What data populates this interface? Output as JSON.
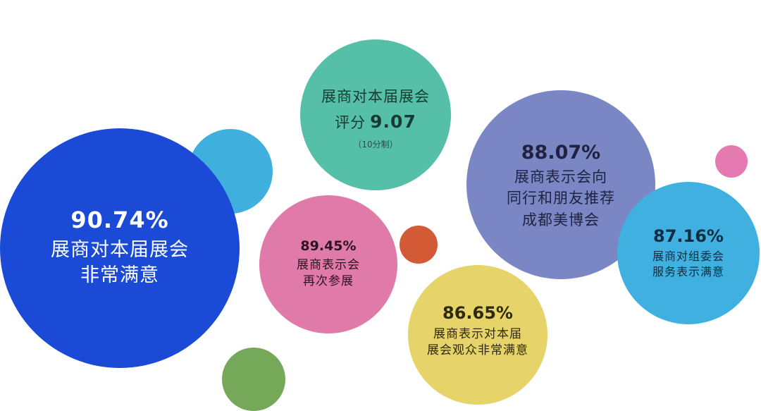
{
  "colors": {
    "dark_blue": "#1a4ad6",
    "light_blue": "#3fb0de",
    "teal": "#56bfa8",
    "purple": "#7a87c4",
    "pink": "#e07aa9",
    "yellow": "#e6d36a",
    "sky_blue": "#3fb0e0",
    "orange": "#d25a35",
    "green": "#76a85a",
    "pink_small": "#e57ab0"
  },
  "bubbles": {
    "exhibitor_satisfaction": {
      "percent": "90.74%",
      "lines": [
        "展商对本届展会",
        "非常满意"
      ]
    },
    "exhibitor_rating": {
      "line1": "展商对本届展会",
      "prefix": "评分",
      "score": "9.07",
      "note": "（10分制）"
    },
    "recommend": {
      "percent": "88.07%",
      "lines": [
        "展商表示会向",
        "同行和朋友推荐",
        "成都美博会"
      ]
    },
    "return_exhibit": {
      "percent": "89.45%",
      "lines": [
        "展商表示会",
        "再次参展"
      ]
    },
    "audience_satisfaction": {
      "percent": "86.65%",
      "lines": [
        "展商表示对本届",
        "展会观众非常满意"
      ]
    },
    "organizer_service": {
      "percent": "87.16%",
      "lines": [
        "展商对组委会",
        "服务表示满意"
      ]
    }
  }
}
